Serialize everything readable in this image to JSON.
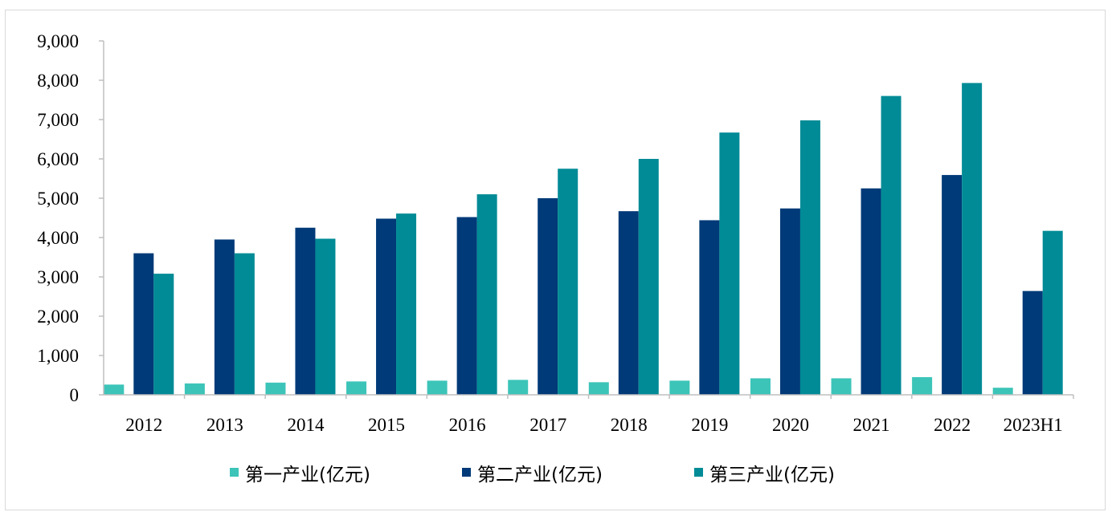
{
  "chart_data": {
    "type": "bar",
    "categories": [
      "2012",
      "2013",
      "2014",
      "2015",
      "2016",
      "2017",
      "2018",
      "2019",
      "2020",
      "2021",
      "2022",
      "2023H1"
    ],
    "series": [
      {
        "name": "第一产业(亿元)",
        "color": "#3cc4b8",
        "values": [
          260,
          290,
          310,
          340,
          360,
          380,
          320,
          360,
          420,
          420,
          450,
          180
        ]
      },
      {
        "name": "第二产业(亿元)",
        "color": "#003a78",
        "values": [
          3600,
          3950,
          4250,
          4480,
          4520,
          5000,
          4670,
          4440,
          4740,
          5250,
          5590,
          2640
        ]
      },
      {
        "name": "第三产业(亿元)",
        "color": "#008b96",
        "values": [
          3080,
          3600,
          3970,
          4610,
          5100,
          5750,
          6000,
          6670,
          6980,
          7600,
          7930,
          4170
        ]
      }
    ],
    "ylim": [
      0,
      9000
    ],
    "yticks": [
      "0",
      "1,000",
      "2,000",
      "3,000",
      "4,000",
      "5,000",
      "6,000",
      "7,000",
      "8,000",
      "9,000"
    ],
    "ytick_values": [
      0,
      1000,
      2000,
      3000,
      4000,
      5000,
      6000,
      7000,
      8000,
      9000
    ],
    "title": "",
    "xlabel": "",
    "ylabel": "",
    "grid": false,
    "legend_position": "bottom"
  }
}
